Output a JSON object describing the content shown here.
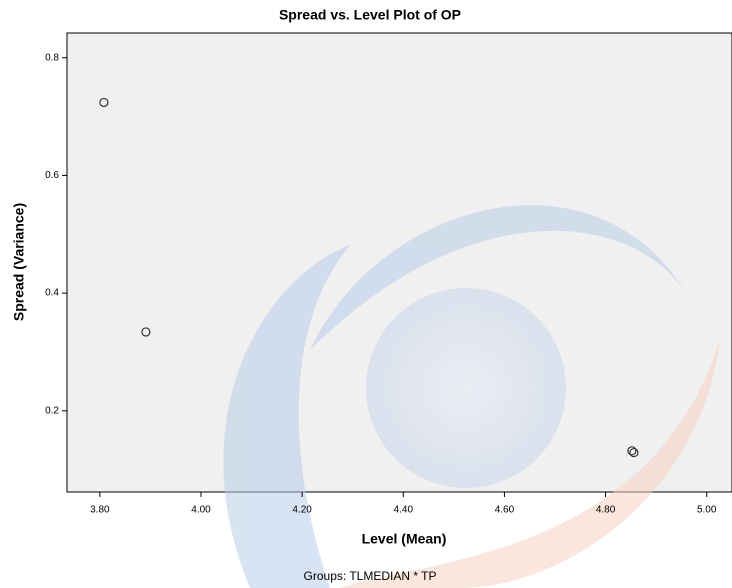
{
  "chart_data": {
    "type": "scatter",
    "title": "Spread vs. Level Plot of OP",
    "x_label": "Level (Mean)",
    "y_label": "Spread (Variance)",
    "footnote": "Groups: TLMEDIAN * TP",
    "x": [
      3.808,
      3.891,
      4.852,
      4.856
    ],
    "values": [
      0.724,
      0.334,
      0.132,
      0.129
    ],
    "xlim": [
      3.735,
      5.05
    ],
    "ylim": [
      0.062,
      0.842
    ],
    "xticks": [
      {
        "value": 3.8,
        "label": "3.80"
      },
      {
        "value": 4.0,
        "label": "4.00"
      },
      {
        "value": 4.2,
        "label": "4.20"
      },
      {
        "value": 4.4,
        "label": "4.40"
      },
      {
        "value": 4.6,
        "label": "4.60"
      },
      {
        "value": 4.8,
        "label": "4.80"
      },
      {
        "value": 5.0,
        "label": "5.00"
      }
    ],
    "yticks": [
      0.2,
      0.4,
      0.6,
      0.8
    ],
    "color": "#333333"
  }
}
